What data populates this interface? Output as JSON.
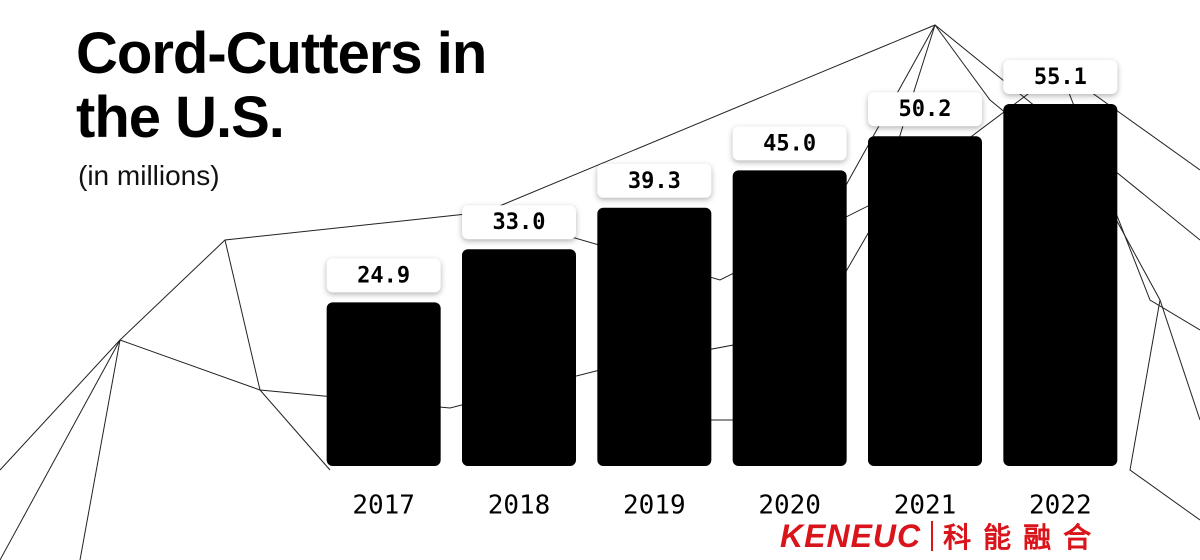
{
  "chart_data": {
    "type": "bar",
    "title": "Cord-Cutters in the U.S.",
    "subtitle": "(in millions)",
    "categories": [
      "2017",
      "2018",
      "2019",
      "2020",
      "2021",
      "2022"
    ],
    "values": [
      24.9,
      33.0,
      39.3,
      45.0,
      50.2,
      55.1
    ],
    "value_labels": [
      "24.9",
      "33.0",
      "39.3",
      "45.0",
      "50.2",
      "55.1"
    ],
    "color": "#000000"
  },
  "logo": {
    "name": "KENEUC",
    "subtitle": "科能融合"
  }
}
